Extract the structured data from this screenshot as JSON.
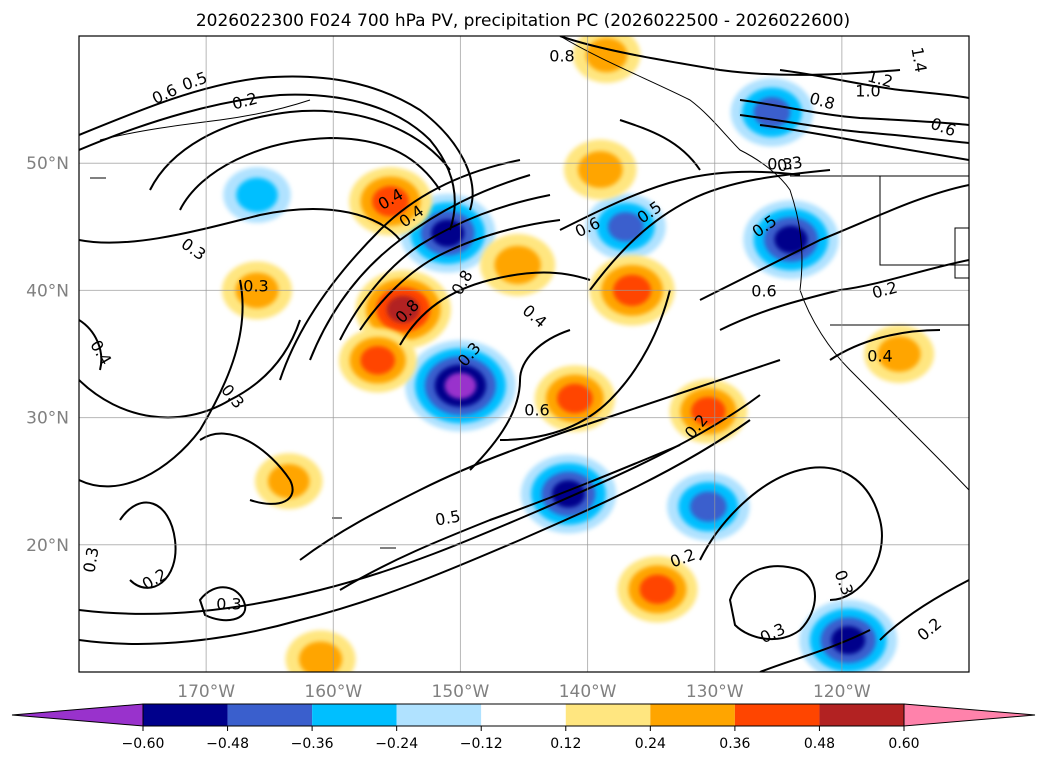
{
  "chart_data": {
    "type": "heatmap",
    "title": "2026022300 F024 700 hPa PV, precipitation PC (2026022500 - 2026022600)",
    "xlabel": "",
    "ylabel": "",
    "lon_range": [
      -180,
      -110
    ],
    "lat_range": [
      10,
      60
    ],
    "grid": true,
    "x_ticks": [
      {
        "value": -170,
        "label": "170°W"
      },
      {
        "value": -160,
        "label": "160°W"
      },
      {
        "value": -150,
        "label": "150°W"
      },
      {
        "value": -140,
        "label": "140°W"
      },
      {
        "value": -130,
        "label": "130°W"
      },
      {
        "value": -120,
        "label": "120°W"
      }
    ],
    "y_ticks": [
      {
        "value": 20,
        "label": "20°N"
      },
      {
        "value": 30,
        "label": "30°N"
      },
      {
        "value": 40,
        "label": "40°N"
      },
      {
        "value": 50,
        "label": "50°N"
      }
    ],
    "colorbar": {
      "orientation": "horizontal",
      "extend": "both",
      "levels": [
        -0.6,
        -0.48,
        -0.36,
        -0.24,
        -0.12,
        0.12,
        0.24,
        0.36,
        0.48,
        0.6
      ],
      "tick_labels": [
        "−0.60",
        "−0.48",
        "−0.36",
        "−0.24",
        "−0.12",
        "0.12",
        "0.24",
        "0.36",
        "0.48",
        "0.60"
      ],
      "colors": [
        "#9932cc",
        "#00008b",
        "#3a5fcd",
        "#00bfff",
        "#b0e2ff",
        "#ffffff",
        "#ffe680",
        "#ffa500",
        "#ff4500",
        "#b22222",
        "#ff82ab"
      ]
    },
    "precip_pc_features": [
      {
        "lon": -150.0,
        "lat": 32.5,
        "value": -0.62
      },
      {
        "lon": -151.0,
        "lat": 44.5,
        "value": -0.5
      },
      {
        "lon": -141.5,
        "lat": 24.0,
        "value": -0.5
      },
      {
        "lon": -124.0,
        "lat": 44.0,
        "value": -0.5
      },
      {
        "lon": -119.5,
        "lat": 12.5,
        "value": -0.52
      },
      {
        "lon": -130.5,
        "lat": 23.0,
        "value": -0.4
      },
      {
        "lon": -137.0,
        "lat": 45.0,
        "value": -0.38
      },
      {
        "lon": -125.5,
        "lat": 54.0,
        "value": -0.4
      },
      {
        "lon": -166.0,
        "lat": 47.5,
        "value": -0.28
      },
      {
        "lon": -154.5,
        "lat": 38.5,
        "value": 0.5
      },
      {
        "lon": -155.5,
        "lat": 47.0,
        "value": 0.4
      },
      {
        "lon": -136.5,
        "lat": 40.0,
        "value": 0.42
      },
      {
        "lon": -141.0,
        "lat": 31.5,
        "value": 0.38
      },
      {
        "lon": -134.5,
        "lat": 16.5,
        "value": 0.38
      },
      {
        "lon": -130.5,
        "lat": 30.5,
        "value": 0.36
      },
      {
        "lon": -145.5,
        "lat": 42.0,
        "value": 0.34
      },
      {
        "lon": -139.0,
        "lat": 49.5,
        "value": 0.32
      },
      {
        "lon": -166.0,
        "lat": 40.0,
        "value": 0.3
      },
      {
        "lon": -156.5,
        "lat": 34.5,
        "value": 0.36
      },
      {
        "lon": -161.0,
        "lat": 11.0,
        "value": 0.3
      },
      {
        "lon": -115.5,
        "lat": 35.0,
        "value": 0.3
      },
      {
        "lon": -138.5,
        "lat": 58.5,
        "value": 0.28
      },
      {
        "lon": -163.5,
        "lat": 25.0,
        "value": 0.28
      }
    ],
    "pv_contour_labels": [
      "0.6",
      "0.5",
      "0.2",
      "0.8",
      "1.4",
      "1.2",
      "1.0",
      "0.8",
      "0.6",
      "0.3",
      "0.4",
      "0.4",
      "0.3",
      "0.6",
      "0.5",
      "0.5",
      "0.3",
      "0.6",
      "0.2",
      "0.8",
      "0.8",
      "0.4",
      "0.4",
      "0.3",
      "0.4",
      "0.3",
      "0.6",
      "0.2",
      "0.5",
      "0.2",
      "0.3",
      "0.3",
      "0.2",
      "0.3",
      "0.3",
      "0.2",
      "0.3"
    ]
  }
}
